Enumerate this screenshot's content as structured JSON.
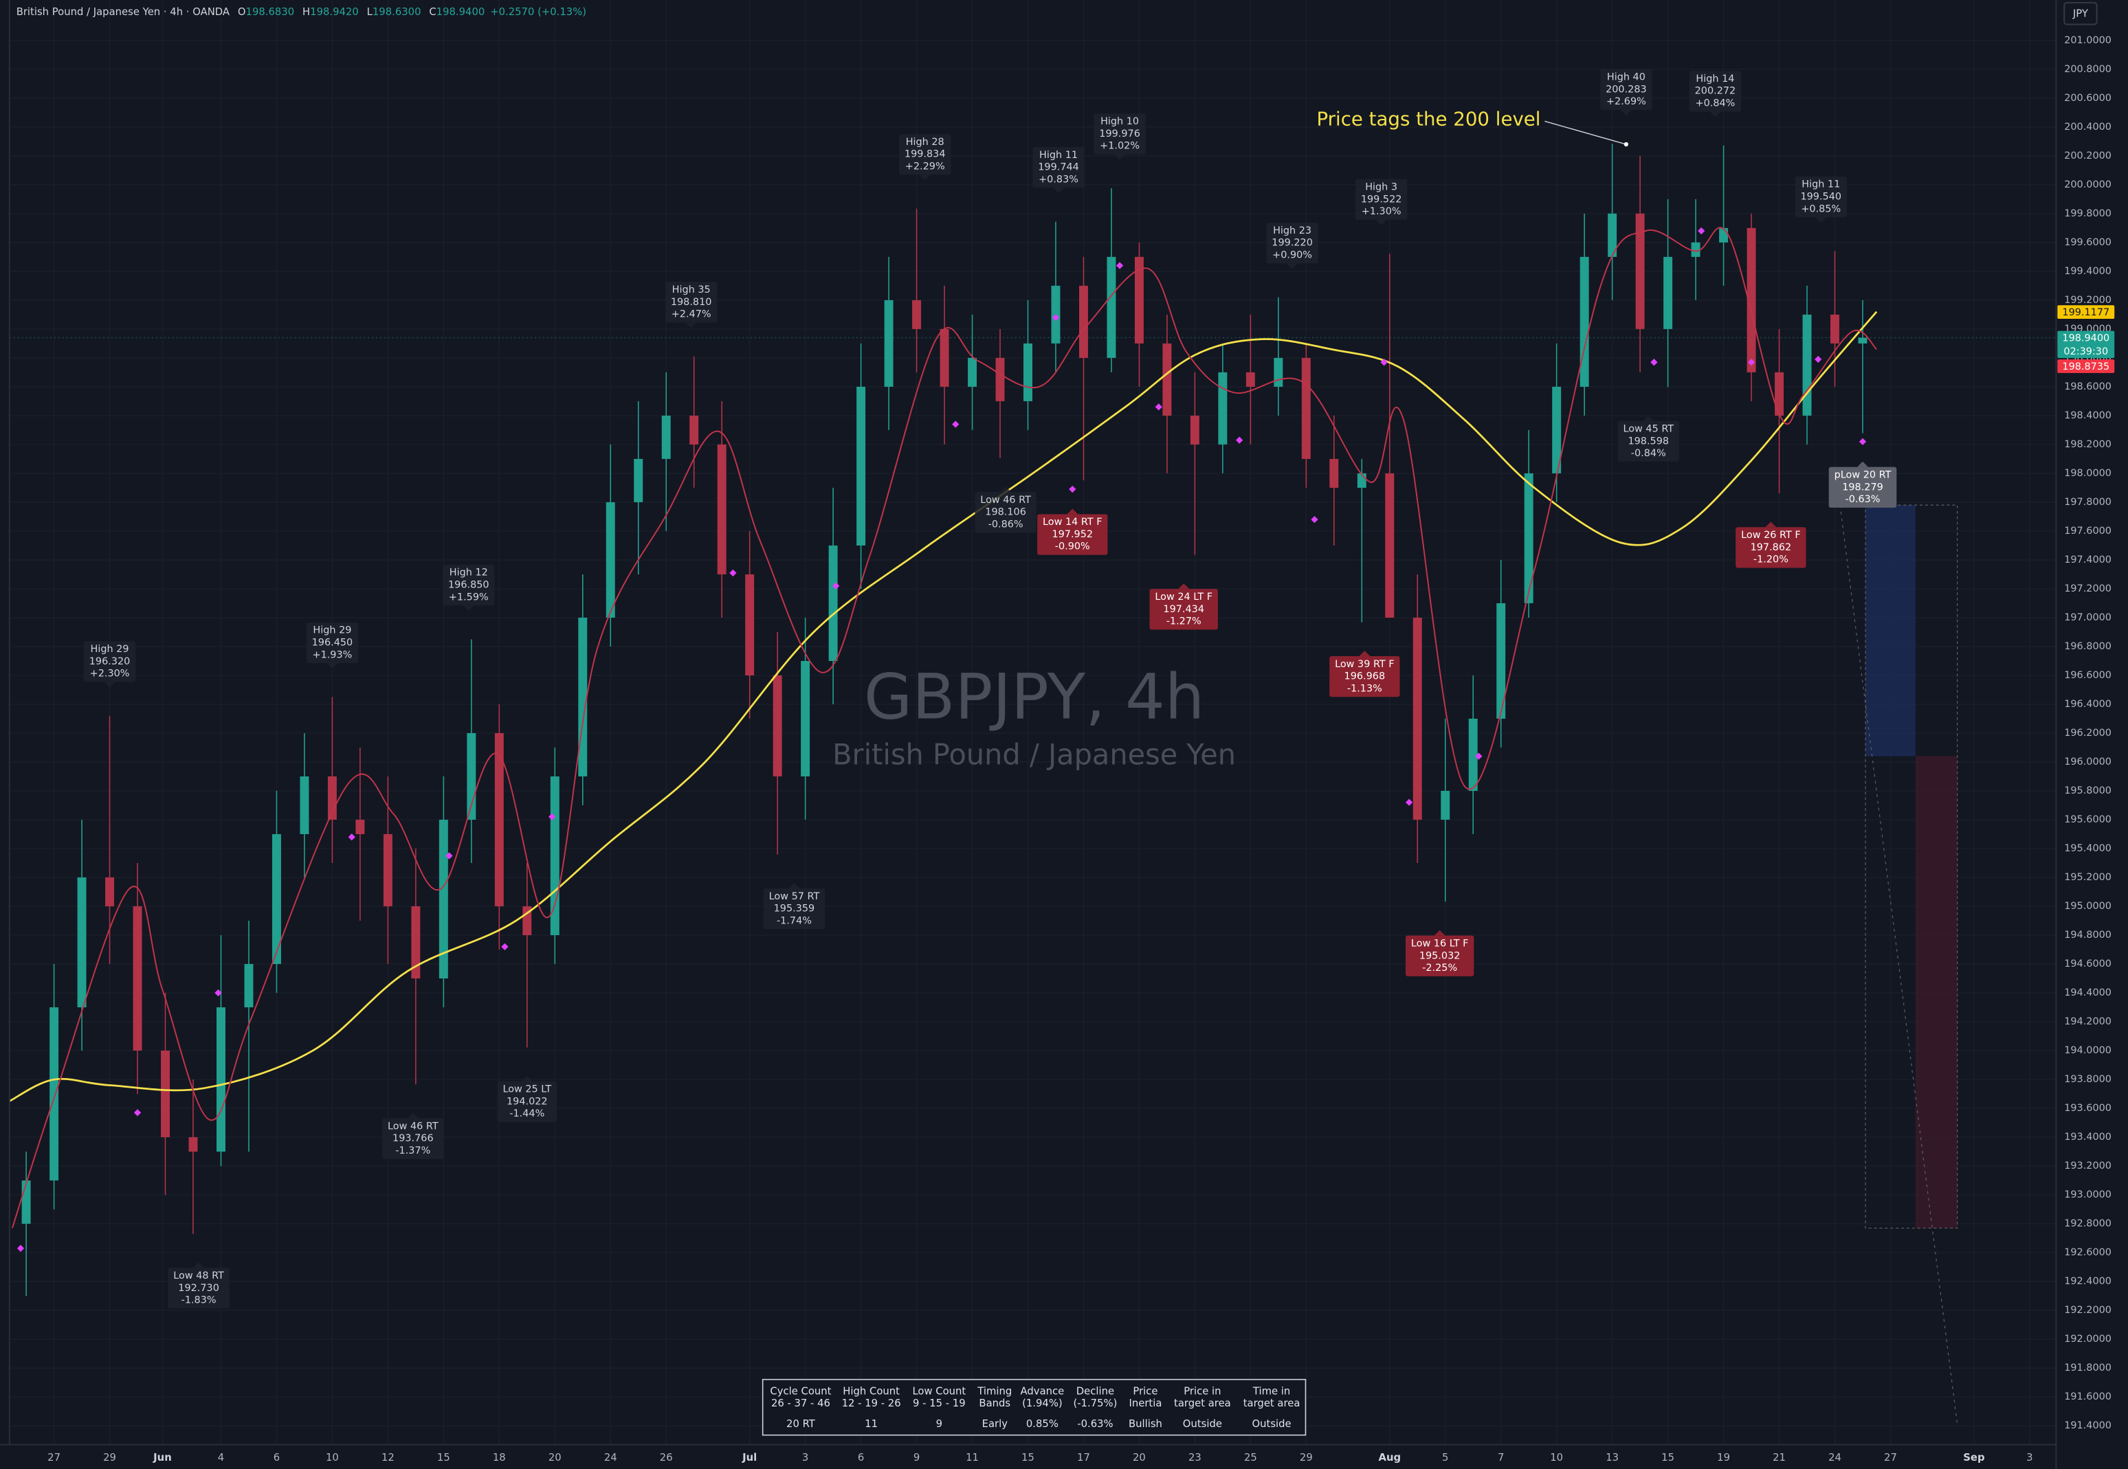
{
  "chart_data": {
    "type": "candlestick",
    "title": "British Pound / Japanese Yen · 4h · OANDA",
    "quote": [
      {
        "key": "O",
        "text": "198.6830"
      },
      {
        "key": "H",
        "text": "198.9420"
      },
      {
        "key": "L",
        "text": "198.6300"
      },
      {
        "key": "C",
        "text": "198.9400"
      },
      {
        "key": "",
        "text": "+0.2570 (+0.13%)"
      }
    ],
    "currency": "JPY",
    "watermark": [
      "GBPJPY, 4h",
      "British Pound / Japanese Yen"
    ],
    "up_color": "#22a090",
    "down_color": "#b23448",
    "x": [
      -1,
      0,
      1,
      2,
      3,
      4,
      5,
      6,
      7,
      8,
      9,
      10,
      11,
      12,
      13,
      14,
      15,
      16,
      17,
      18,
      19,
      20,
      21,
      22,
      23,
      24,
      25,
      26,
      27,
      28,
      29,
      30,
      31,
      32,
      33,
      34,
      35,
      36,
      37,
      38,
      39,
      40,
      41,
      42,
      43,
      44,
      45,
      46,
      47,
      48,
      49,
      50,
      51,
      52,
      53,
      54,
      55,
      56,
      57,
      58,
      59,
      60,
      61,
      62,
      63,
      64,
      65
    ],
    "open": [
      192.8,
      193.1,
      194.3,
      195.2,
      195.0,
      194.0,
      193.4,
      193.3,
      194.3,
      194.6,
      195.5,
      195.9,
      195.6,
      195.5,
      195.0,
      194.5,
      195.6,
      196.2,
      195.0,
      194.8,
      195.9,
      197.0,
      197.8,
      198.1,
      198.4,
      198.2,
      197.3,
      196.6,
      195.9,
      196.7,
      197.5,
      198.6,
      199.2,
      199.0,
      198.6,
      198.8,
      198.5,
      198.9,
      199.3,
      198.8,
      199.5,
      198.9,
      198.4,
      198.2,
      198.7,
      198.6,
      198.8,
      198.1,
      197.9,
      198.0,
      197.0,
      195.6,
      195.8,
      196.3,
      197.1,
      198.0,
      198.6,
      199.5,
      199.8,
      199.0,
      199.5,
      199.6,
      199.7,
      198.7,
      198.4,
      199.1,
      198.9
    ],
    "high": [
      193.3,
      194.6,
      195.6,
      196.32,
      195.3,
      194.4,
      193.8,
      194.8,
      194.9,
      195.8,
      196.2,
      196.45,
      196.1,
      195.9,
      195.4,
      195.9,
      196.85,
      196.4,
      195.3,
      196.1,
      197.3,
      198.2,
      198.5,
      198.7,
      198.81,
      198.5,
      197.6,
      196.9,
      197.0,
      197.9,
      198.9,
      199.5,
      199.834,
      199.3,
      199.1,
      199.0,
      199.2,
      199.744,
      199.5,
      199.976,
      199.6,
      199.1,
      198.7,
      198.9,
      199.1,
      199.22,
      198.9,
      198.4,
      198.1,
      199.522,
      197.3,
      196.3,
      196.6,
      197.4,
      198.3,
      198.9,
      199.8,
      200.283,
      200.2,
      199.9,
      199.9,
      200.272,
      199.8,
      199.0,
      199.3,
      199.54,
      199.2
    ],
    "low": [
      192.3,
      192.9,
      194.0,
      194.6,
      193.7,
      193.0,
      192.73,
      193.2,
      193.3,
      194.4,
      195.2,
      195.3,
      194.9,
      194.6,
      193.766,
      194.3,
      195.3,
      194.7,
      194.022,
      194.6,
      195.7,
      196.8,
      197.3,
      197.6,
      197.9,
      197.0,
      196.3,
      195.359,
      195.6,
      196.4,
      197.2,
      198.3,
      198.7,
      198.2,
      198.3,
      198.106,
      198.3,
      198.7,
      197.952,
      198.7,
      198.6,
      198.0,
      197.434,
      198.0,
      198.2,
      198.4,
      197.9,
      197.5,
      196.968,
      197.0,
      195.3,
      195.032,
      195.5,
      196.1,
      197.0,
      197.8,
      198.4,
      199.2,
      198.7,
      198.598,
      199.2,
      199.3,
      198.5,
      197.862,
      198.2,
      198.6,
      198.279
    ],
    "close": [
      193.1,
      194.3,
      195.2,
      195.0,
      194.0,
      193.4,
      193.3,
      194.3,
      194.6,
      195.5,
      195.9,
      195.6,
      195.5,
      195.0,
      194.5,
      195.6,
      196.2,
      195.0,
      194.8,
      195.9,
      197.0,
      197.8,
      198.1,
      198.4,
      198.2,
      197.3,
      196.6,
      195.9,
      196.7,
      197.5,
      198.6,
      199.2,
      199.0,
      198.6,
      198.8,
      198.5,
      198.9,
      199.3,
      198.8,
      199.5,
      198.9,
      198.4,
      198.2,
      198.7,
      198.6,
      198.8,
      198.1,
      197.9,
      198.0,
      197.0,
      195.6,
      195.8,
      196.3,
      197.1,
      198.0,
      198.6,
      199.5,
      199.8,
      199.0,
      199.5,
      199.6,
      199.7,
      198.7,
      198.4,
      199.1,
      198.9,
      198.94
    ],
    "lines": [
      {
        "color": "#f5e14a",
        "width": 1.4,
        "x": [
          -1.6,
          0,
          2,
          5.4,
          9.3,
          12.7,
          16.6,
          20,
          23.4,
          27.3,
          31.2,
          35.1,
          38.5,
          41,
          43.4,
          45.9,
          48.3,
          50.7,
          53.2,
          56.3,
          58.5,
          61,
          63.4,
          65.5
        ],
        "values": [
          193.65,
          193.8,
          193.76,
          193.74,
          194.0,
          194.55,
          194.9,
          195.45,
          196.0,
          196.9,
          197.47,
          197.99,
          198.46,
          198.82,
          198.93,
          198.86,
          198.74,
          198.37,
          197.9,
          197.52,
          197.62,
          198.09,
          198.65,
          199.12
        ]
      },
      {
        "color": "#c2344a",
        "width": 1,
        "x": [
          -1.5,
          0,
          2.7,
          3.9,
          5.6,
          7.1,
          10.5,
          12.2,
          13.9,
          15.9,
          17.8,
          19.5,
          22,
          23.9,
          25.4,
          27.6,
          29.3,
          31.7,
          33.2,
          35.4,
          37.1,
          39.3,
          40.7,
          42.4,
          44.9,
          47.3,
          48.5,
          50.7,
          53.2,
          55.6,
          57.2,
          59,
          60.2,
          62,
          62.9,
          64.6,
          65.5
        ],
        "values": [
          192.77,
          193.67,
          195.12,
          194.42,
          193.52,
          194.23,
          195.83,
          195.64,
          195.12,
          196.06,
          194.93,
          196.77,
          197.71,
          198.29,
          197.52,
          196.62,
          197.42,
          198.93,
          198.78,
          198.6,
          199.02,
          199.42,
          198.84,
          198.56,
          198.63,
          197.94,
          198.37,
          195.83,
          197.33,
          199.31,
          199.68,
          199.54,
          199.64,
          198.41,
          198.55,
          198.98,
          198.86
        ]
      }
    ],
    "markers": {
      "color": "#e040fb",
      "x": [
        -1.2,
        3,
        5.9,
        10.7,
        14.2,
        16.2,
        17.9,
        24.4,
        28.1,
        32.4,
        36,
        36.6,
        38.3,
        39.7,
        42.6,
        45.3,
        47.8,
        48.7,
        51.2,
        57.5,
        59.2,
        61,
        63.4,
        65
      ],
      "values": [
        192.63,
        193.57,
        194.4,
        195.48,
        195.35,
        194.72,
        195.62,
        197.31,
        197.22,
        198.34,
        199.08,
        197.89,
        199.44,
        198.46,
        198.23,
        197.68,
        198.77,
        195.72,
        196.04,
        198.77,
        199.68,
        198.77,
        198.79,
        198.22
      ]
    },
    "pivots": [
      {
        "name": "High 29",
        "x": 2,
        "value": 196.32,
        "value_label": "196.320",
        "change": "+2.30%",
        "color": "#1e222d"
      },
      {
        "name": "Low 48 RT",
        "x": 5.2,
        "value": 192.73,
        "value_label": "192.730",
        "change": "-1.83%",
        "color": "#1e222d"
      },
      {
        "name": "High 29",
        "x": 10,
        "value": 196.45,
        "value_label": "196.450",
        "change": "+1.93%",
        "color": "#1e222d"
      },
      {
        "name": "Low 46 RT",
        "x": 12.9,
        "value": 193.766,
        "change": "-1.37%",
        "value_label": "193.766",
        "color": "#1e222d"
      },
      {
        "name": "High 12",
        "x": 14.9,
        "value": 196.85,
        "value_label": "196.850",
        "change": "+1.59%",
        "color": "#1e222d"
      },
      {
        "name": "Low 25 LT",
        "x": 17,
        "value": 194.022,
        "value_label": "194.022",
        "change": "-1.44%",
        "color": "#1e222d"
      },
      {
        "name": "High 35",
        "x": 22.9,
        "value": 198.81,
        "value_label": "198.810",
        "change": "+2.47%",
        "color": "#1e222d"
      },
      {
        "name": "Low 57 RT",
        "x": 26.6,
        "value": 195.359,
        "value_label": "195.359",
        "change": "-1.74%",
        "color": "#1e222d"
      },
      {
        "name": "High 28",
        "x": 31.3,
        "value": 199.834,
        "value_label": "199.834",
        "change": "+2.29%",
        "color": "#1e222d"
      },
      {
        "name": "Low 46 RT",
        "x": 34.2,
        "value": 198.106,
        "value_label": "198.106",
        "change": "-0.86%",
        "color": "#1e222d"
      },
      {
        "name": "High 11",
        "x": 36.1,
        "value": 199.744,
        "value_label": "199.744",
        "change": "+0.83%",
        "color": "#1e222d"
      },
      {
        "name": "Low 14 RT F",
        "x": 36.6,
        "value": 197.952,
        "value_label": "197.952",
        "change": "-0.90%",
        "color": "#8c2230"
      },
      {
        "name": "High 10",
        "x": 38.3,
        "value": 199.976,
        "value_label": "199.976",
        "change": "+1.02%",
        "color": "#1e222d"
      },
      {
        "name": "Low 24 LT F",
        "x": 40.6,
        "value": 197.434,
        "value_label": "197.434",
        "change": "-1.27%",
        "color": "#8c2230"
      },
      {
        "name": "High 23",
        "x": 44.5,
        "value": 199.22,
        "value_label": "199.220",
        "change": "+0.90%",
        "color": "#1e222d"
      },
      {
        "name": "High 3",
        "x": 47.7,
        "value": 199.522,
        "value_label": "199.522",
        "change": "+1.30%",
        "color": "#1e222d"
      },
      {
        "name": "Low 39 RT F",
        "x": 47.1,
        "value": 196.968,
        "value_label": "196.968",
        "change": "-1.13%",
        "color": "#8c2230"
      },
      {
        "name": "Low 16 LT F",
        "x": 49.8,
        "value": 195.032,
        "value_label": "195.032",
        "change": "-2.25%",
        "color": "#8c2230"
      },
      {
        "name": "High 40",
        "x": 56.5,
        "value": 200.283,
        "value_label": "200.283",
        "change": "+2.69%",
        "color": "#1e222d"
      },
      {
        "name": "Low 45 RT",
        "x": 57.3,
        "value": 198.598,
        "value_label": "198.598",
        "change": "-0.84%",
        "color": "#1e222d"
      },
      {
        "name": "High 14",
        "x": 59.7,
        "value": 200.272,
        "value_label": "200.272",
        "change": "+0.84%",
        "color": "#1e222d"
      },
      {
        "name": "High 11",
        "x": 63.5,
        "value": 199.54,
        "value_label": "199.540",
        "change": "+0.85%",
        "color": "#1e222d"
      },
      {
        "name": "Low 26 RT F",
        "x": 61.7,
        "value": 197.862,
        "value_label": "197.862",
        "change": "-1.20%",
        "color": "#8c2230"
      },
      {
        "name": "pLow 20 RT",
        "x": 65,
        "value": 198.279,
        "value_label": "198.279",
        "change": "-0.63%",
        "color": "#5d606b"
      }
    ],
    "annotation": {
      "text": "Price tags the 200 level",
      "x": 56.5,
      "value": 200.28,
      "color": "#f5e14a"
    },
    "zones": [
      {
        "x": [
          65.1,
          66.9
        ],
        "from": 197.78,
        "to": 196.04,
        "color": "#1c2a55"
      },
      {
        "x": [
          66.9,
          68.4
        ],
        "from": 196.04,
        "to": 192.77,
        "color": "#3a1a28"
      }
    ],
    "price_tags": [
      {
        "value": 199.1177,
        "color": "#f7c600",
        "text_color": "#131722"
      },
      {
        "value": 198.94,
        "label": "198.9400",
        "countdown": "02:39:30",
        "color": "#1f9f8f",
        "text_color": "#ffffff"
      },
      {
        "value": 198.8735,
        "color": "#f23645",
        "text_color": "#ffffff"
      }
    ],
    "xlim": [
      -1.6,
      71.95
    ],
    "ylim": [
      191.27,
      201.28
    ],
    "grid": true,
    "xticks": [
      {
        "value": 0,
        "label": "27"
      },
      {
        "value": 2,
        "label": "29"
      },
      {
        "value": 3.9,
        "label": "Jun"
      },
      {
        "value": 6,
        "label": "4"
      },
      {
        "value": 8,
        "label": "6"
      },
      {
        "value": 10,
        "label": "10"
      },
      {
        "value": 12,
        "label": "12"
      },
      {
        "value": 14,
        "label": "15"
      },
      {
        "value": 16,
        "label": "18"
      },
      {
        "value": 18,
        "label": "20"
      },
      {
        "value": 20,
        "label": "24"
      },
      {
        "value": 22,
        "label": "26"
      },
      {
        "value": 25,
        "label": "Jul"
      },
      {
        "value": 27,
        "label": "3"
      },
      {
        "value": 29,
        "label": "6"
      },
      {
        "value": 31,
        "label": "9"
      },
      {
        "value": 33,
        "label": "11"
      },
      {
        "value": 35,
        "label": "15"
      },
      {
        "value": 37,
        "label": "17"
      },
      {
        "value": 39,
        "label": "20"
      },
      {
        "value": 41,
        "label": "23"
      },
      {
        "value": 43,
        "label": "25"
      },
      {
        "value": 45,
        "label": "29"
      },
      {
        "value": 48,
        "label": "Aug"
      },
      {
        "value": 50,
        "label": "5"
      },
      {
        "value": 52,
        "label": "7"
      },
      {
        "value": 54,
        "label": "10"
      },
      {
        "value": 56,
        "label": "13"
      },
      {
        "value": 58,
        "label": "15"
      },
      {
        "value": 60,
        "label": "19"
      },
      {
        "value": 62,
        "label": "21"
      },
      {
        "value": 64,
        "label": "24"
      },
      {
        "value": 66,
        "label": "27"
      },
      {
        "value": 69,
        "label": "Sep"
      },
      {
        "value": 71,
        "label": "3"
      }
    ],
    "yticks": [
      {
        "value": 191.4,
        "label": "191.4000"
      },
      {
        "value": 191.6,
        "label": "191.6000"
      },
      {
        "value": 191.8,
        "label": "191.8000"
      },
      {
        "value": 192,
        "label": "192.0000"
      },
      {
        "value": 192.2,
        "label": "192.2000"
      },
      {
        "value": 192.4,
        "label": "192.4000"
      },
      {
        "value": 192.6,
        "label": "192.6000"
      },
      {
        "value": 192.8,
        "label": "192.8000"
      },
      {
        "value": 193,
        "label": "193.0000"
      },
      {
        "value": 193.2,
        "label": "193.2000"
      },
      {
        "value": 193.4,
        "label": "193.4000"
      },
      {
        "value": 193.6,
        "label": "193.6000"
      },
      {
        "value": 193.8,
        "label": "193.8000"
      },
      {
        "value": 194,
        "label": "194.0000"
      },
      {
        "value": 194.2,
        "label": "194.2000"
      },
      {
        "value": 194.4,
        "label": "194.4000"
      },
      {
        "value": 194.6,
        "label": "194.6000"
      },
      {
        "value": 194.8,
        "label": "194.8000"
      },
      {
        "value": 195,
        "label": "195.0000"
      },
      {
        "value": 195.2,
        "label": "195.2000"
      },
      {
        "value": 195.4,
        "label": "195.4000"
      },
      {
        "value": 195.6,
        "label": "195.6000"
      },
      {
        "value": 195.8,
        "label": "195.8000"
      },
      {
        "value": 196,
        "label": "196.0000"
      },
      {
        "value": 196.2,
        "label": "196.2000"
      },
      {
        "value": 196.4,
        "label": "196.4000"
      },
      {
        "value": 196.6,
        "label": "196.6000"
      },
      {
        "value": 196.8,
        "label": "196.8000"
      },
      {
        "value": 197,
        "label": "197.0000"
      },
      {
        "value": 197.2,
        "label": "197.2000"
      },
      {
        "value": 197.4,
        "label": "197.4000"
      },
      {
        "value": 197.6,
        "label": "197.6000"
      },
      {
        "value": 197.8,
        "label": "197.8000"
      },
      {
        "value": 198,
        "label": "198.0000"
      },
      {
        "value": 198.2,
        "label": "198.2000"
      },
      {
        "value": 198.4,
        "label": "198.4000"
      },
      {
        "value": 198.6,
        "label": "198.6000"
      },
      {
        "value": 198.8,
        "label": "198.8000"
      },
      {
        "value": 199,
        "label": "199.0000"
      },
      {
        "value": 199.2,
        "label": "199.2000"
      },
      {
        "value": 199.4,
        "label": "199.4000"
      },
      {
        "value": 199.6,
        "label": "199.6000"
      },
      {
        "value": 199.8,
        "label": "199.8000"
      },
      {
        "value": 200,
        "label": "200.0000"
      },
      {
        "value": 200.2,
        "label": "200.2000"
      },
      {
        "value": 200.4,
        "label": "200.4000"
      },
      {
        "value": 200.6,
        "label": "200.6000"
      },
      {
        "value": 200.8,
        "label": "200.8000"
      },
      {
        "value": 201,
        "label": "201.0000"
      }
    ],
    "table": {
      "headers": [
        [
          "Cycle Count",
          "26 - 37 - 46"
        ],
        [
          "High Count",
          "12 - 19 - 26"
        ],
        [
          "Low Count",
          "9 - 15 - 19"
        ],
        [
          "Timing",
          "Bands"
        ],
        [
          "Advance",
          "(1.94%)"
        ],
        [
          "Decline",
          "(-1.75%)"
        ],
        [
          "Price",
          "Inertia"
        ],
        [
          "Price in",
          "target area"
        ],
        [
          "Time in",
          "target area"
        ]
      ],
      "row": [
        "20 RT",
        "11",
        "9",
        "Early",
        "0.85%",
        "-0.63%",
        "Bullish",
        "Outside",
        "Outside"
      ]
    }
  }
}
